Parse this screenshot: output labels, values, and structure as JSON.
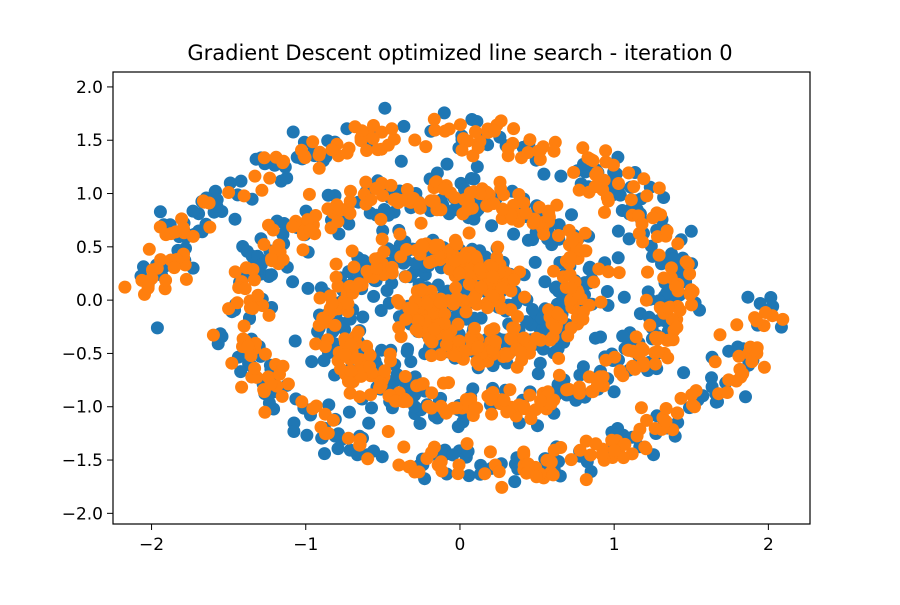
{
  "chart_data": {
    "type": "scatter",
    "title": "Gradient Descent optimized line search - iteration 0",
    "xlabel": "",
    "ylabel": "",
    "xlim": [
      -2.25,
      2.27
    ],
    "ylim": [
      -2.1,
      2.14
    ],
    "xticks": [
      -2,
      -1,
      0,
      1,
      2
    ],
    "xtick_labels": [
      "−2",
      "−1",
      "0",
      "1",
      "2"
    ],
    "yticks": [
      2.0,
      1.5,
      1.0,
      0.5,
      0.0,
      -0.5,
      -1.0,
      -1.5,
      -2.0
    ],
    "ytick_labels": [
      "2.0",
      "1.5",
      "1.0",
      "0.5",
      "0.0",
      "−0.5",
      "−1.0",
      "−1.5",
      "−2.0"
    ],
    "grid": false,
    "legend": "none",
    "series": [
      {
        "color": "#1f77b4",
        "description": "two-arm spiral (original data)",
        "shape": {
          "r0": 0.14,
          "r1": 1.98,
          "t0": 0.0,
          "t1": 9.42,
          "arms": 2,
          "noise": 0.11,
          "n": 900,
          "y_scale": 0.92
        }
      },
      {
        "color": "#ff7f0e",
        "description": "two-arm spiral (model output)",
        "shape": {
          "r0": 0.16,
          "r1": 1.98,
          "t0": 0.0,
          "t1": 9.42,
          "arms": 2,
          "noise": 0.09,
          "n": 900,
          "y_scale": 0.92
        }
      }
    ]
  }
}
